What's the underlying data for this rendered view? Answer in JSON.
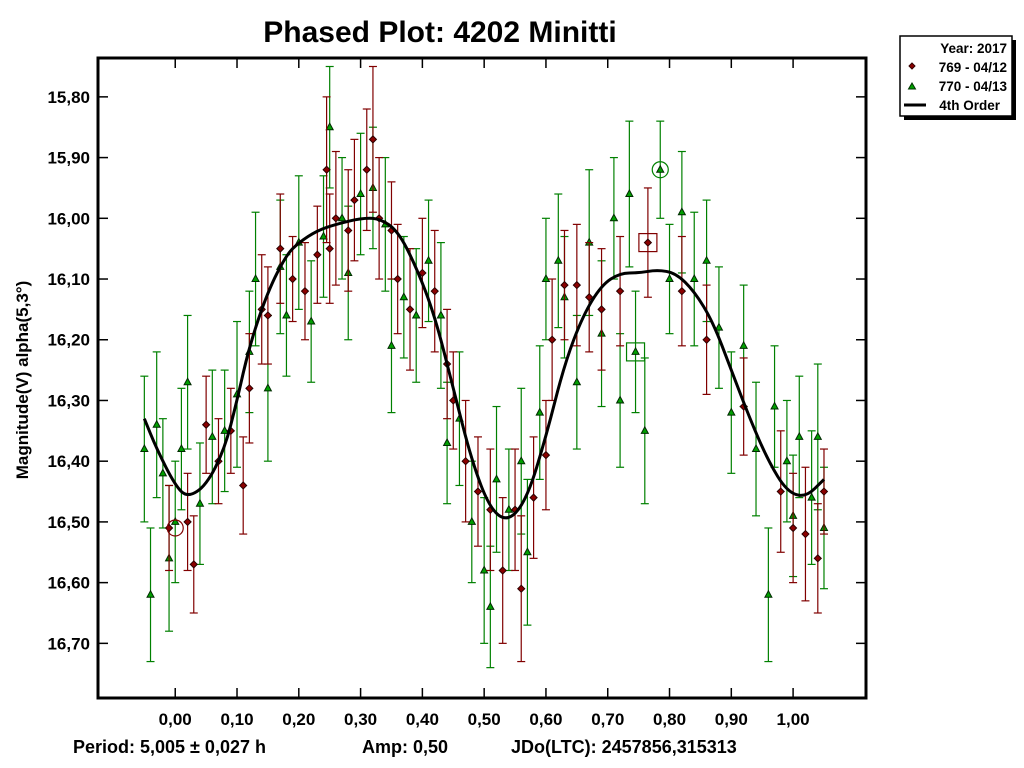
{
  "chart_data": {
    "type": "scatter",
    "title": "Phased Plot: 4202 Minitti",
    "xlabel": "",
    "ylabel": "Magnitude(V) alpha(5,3°)",
    "xlim": [
      -0.125,
      1.118
    ],
    "ylim": [
      15.736,
      16.79
    ],
    "y_inverted": true,
    "grid": false,
    "x_ticks": [
      "0,00",
      "0,10",
      "0,20",
      "0,30",
      "0,40",
      "0,50",
      "0,60",
      "0,70",
      "0,80",
      "0,90",
      "1,00"
    ],
    "x_tick_values": [
      0,
      0.1,
      0.2,
      0.3,
      0.4,
      0.5,
      0.6,
      0.7,
      0.8,
      0.9,
      1.0
    ],
    "y_ticks": [
      "15,80",
      "15,90",
      "16,00",
      "16,10",
      "16,20",
      "16,30",
      "16,40",
      "16,50",
      "16,60",
      "16,70"
    ],
    "y_tick_values": [
      15.8,
      15.9,
      16.0,
      16.1,
      16.2,
      16.3,
      16.4,
      16.5,
      16.6,
      16.7
    ],
    "legend": {
      "placement": "top-right-outside",
      "header": "Year: 2017",
      "entries": [
        "769 - 04/12",
        "770 - 04/13",
        "4th Order"
      ]
    },
    "colors": {
      "series1": "#800000",
      "series2": "#008000",
      "fit": "#000000"
    },
    "series": [
      {
        "name": "769 - 04/12",
        "marker": "diamond",
        "points_phase_mag_err": [
          [
            -0.01,
            16.51,
            0.07
          ],
          [
            0.02,
            16.5,
            0.08
          ],
          [
            0.03,
            16.57,
            0.08
          ],
          [
            0.05,
            16.34,
            0.08
          ],
          [
            0.07,
            16.4,
            0.07
          ],
          [
            0.09,
            16.35,
            0.07
          ],
          [
            0.11,
            16.44,
            0.08
          ],
          [
            0.12,
            16.28,
            0.09
          ],
          [
            0.14,
            16.15,
            0.09
          ],
          [
            0.15,
            16.16,
            0.08
          ],
          [
            0.17,
            16.05,
            0.09
          ],
          [
            0.19,
            16.1,
            0.07
          ],
          [
            0.21,
            16.12,
            0.08
          ],
          [
            0.23,
            16.06,
            0.08
          ],
          [
            0.245,
            15.92,
            0.12
          ],
          [
            0.25,
            16.05,
            0.09
          ],
          [
            0.26,
            16.0,
            0.11
          ],
          [
            0.28,
            16.02,
            0.1
          ],
          [
            0.29,
            15.97,
            0.1
          ],
          [
            0.31,
            15.92,
            0.1
          ],
          [
            0.32,
            15.87,
            0.12
          ],
          [
            0.33,
            16.0,
            0.1
          ],
          [
            0.35,
            16.02,
            0.08
          ],
          [
            0.36,
            16.1,
            0.09
          ],
          [
            0.38,
            16.15,
            0.1
          ],
          [
            0.4,
            16.09,
            0.09
          ],
          [
            0.42,
            16.12,
            0.1
          ],
          [
            0.44,
            16.24,
            0.09
          ],
          [
            0.45,
            16.3,
            0.08
          ],
          [
            0.47,
            16.4,
            0.1
          ],
          [
            0.49,
            16.45,
            0.09
          ],
          [
            0.51,
            16.48,
            0.1
          ],
          [
            0.53,
            16.58,
            0.12
          ],
          [
            0.55,
            16.48,
            0.1
          ],
          [
            0.56,
            16.61,
            0.12
          ],
          [
            0.58,
            16.46,
            0.1
          ],
          [
            0.6,
            16.39,
            0.09
          ],
          [
            0.61,
            16.2,
            0.1
          ],
          [
            0.63,
            16.11,
            0.09
          ],
          [
            0.65,
            16.11,
            0.1
          ],
          [
            0.67,
            16.13,
            0.09
          ],
          [
            0.69,
            16.15,
            0.1
          ],
          [
            0.72,
            16.12,
            0.09
          ],
          [
            0.765,
            16.04,
            0.09
          ],
          [
            0.82,
            16.12,
            0.09
          ],
          [
            0.86,
            16.2,
            0.09
          ],
          [
            0.92,
            16.31,
            0.08
          ],
          [
            0.98,
            16.45,
            0.1
          ],
          [
            1.0,
            16.51,
            0.09
          ],
          [
            1.02,
            16.52,
            0.11
          ],
          [
            1.04,
            16.56,
            0.09
          ],
          [
            1.05,
            16.45,
            0.07
          ]
        ]
      },
      {
        "name": "770 - 04/13",
        "marker": "triangle",
        "points_phase_mag_err": [
          [
            -0.05,
            16.38,
            0.12
          ],
          [
            -0.04,
            16.62,
            0.11
          ],
          [
            -0.03,
            16.34,
            0.12
          ],
          [
            -0.02,
            16.42,
            0.09
          ],
          [
            -0.01,
            16.56,
            0.12
          ],
          [
            0.0,
            16.5,
            0.1
          ],
          [
            0.01,
            16.38,
            0.1
          ],
          [
            0.02,
            16.27,
            0.11
          ],
          [
            0.04,
            16.47,
            0.1
          ],
          [
            0.06,
            16.36,
            0.11
          ],
          [
            0.08,
            16.35,
            0.1
          ],
          [
            0.1,
            16.29,
            0.12
          ],
          [
            0.12,
            16.22,
            0.1
          ],
          [
            0.13,
            16.1,
            0.11
          ],
          [
            0.15,
            16.28,
            0.12
          ],
          [
            0.17,
            16.08,
            0.11
          ],
          [
            0.18,
            16.16,
            0.1
          ],
          [
            0.2,
            16.04,
            0.11
          ],
          [
            0.22,
            16.17,
            0.1
          ],
          [
            0.24,
            16.03,
            0.1
          ],
          [
            0.25,
            15.85,
            0.1
          ],
          [
            0.27,
            16.0,
            0.1
          ],
          [
            0.28,
            16.09,
            0.11
          ],
          [
            0.3,
            15.96,
            0.1
          ],
          [
            0.32,
            15.95,
            0.1
          ],
          [
            0.34,
            16.01,
            0.11
          ],
          [
            0.35,
            16.21,
            0.11
          ],
          [
            0.37,
            16.13,
            0.1
          ],
          [
            0.39,
            16.16,
            0.11
          ],
          [
            0.41,
            16.07,
            0.1
          ],
          [
            0.43,
            16.16,
            0.12
          ],
          [
            0.44,
            16.37,
            0.1
          ],
          [
            0.46,
            16.33,
            0.11
          ],
          [
            0.48,
            16.5,
            0.1
          ],
          [
            0.5,
            16.58,
            0.12
          ],
          [
            0.51,
            16.64,
            0.1
          ],
          [
            0.52,
            16.43,
            0.12
          ],
          [
            0.54,
            16.48,
            0.1
          ],
          [
            0.56,
            16.4,
            0.12
          ],
          [
            0.57,
            16.55,
            0.12
          ],
          [
            0.59,
            16.32,
            0.11
          ],
          [
            0.6,
            16.1,
            0.1
          ],
          [
            0.62,
            16.07,
            0.11
          ],
          [
            0.63,
            16.13,
            0.1
          ],
          [
            0.65,
            16.27,
            0.11
          ],
          [
            0.67,
            16.04,
            0.12
          ],
          [
            0.69,
            16.19,
            0.12
          ],
          [
            0.71,
            16.0,
            0.1
          ],
          [
            0.72,
            16.3,
            0.11
          ],
          [
            0.735,
            15.96,
            0.12
          ],
          [
            0.745,
            16.22,
            0.1
          ],
          [
            0.76,
            16.35,
            0.12
          ],
          [
            0.785,
            15.92,
            0.08
          ],
          [
            0.8,
            16.1,
            0.09
          ],
          [
            0.82,
            15.99,
            0.1
          ],
          [
            0.84,
            16.1,
            0.11
          ],
          [
            0.86,
            16.07,
            0.1
          ],
          [
            0.88,
            16.18,
            0.1
          ],
          [
            0.9,
            16.32,
            0.1
          ],
          [
            0.92,
            16.21,
            0.1
          ],
          [
            0.94,
            16.38,
            0.11
          ],
          [
            0.96,
            16.62,
            0.11
          ],
          [
            0.97,
            16.31,
            0.1
          ],
          [
            0.99,
            16.4,
            0.1
          ],
          [
            1.0,
            16.49,
            0.1
          ],
          [
            1.01,
            16.36,
            0.1
          ],
          [
            1.03,
            16.46,
            0.11
          ],
          [
            1.04,
            16.36,
            0.12
          ],
          [
            1.05,
            16.51,
            0.1
          ]
        ]
      },
      {
        "name": "4th Order",
        "type": "line",
        "points_phase_mag": [
          [
            -0.05,
            16.33
          ],
          [
            -0.03,
            16.38
          ],
          [
            0.0,
            16.44
          ],
          [
            0.02,
            16.46
          ],
          [
            0.05,
            16.44
          ],
          [
            0.08,
            16.38
          ],
          [
            0.1,
            16.3
          ],
          [
            0.12,
            16.21
          ],
          [
            0.15,
            16.12
          ],
          [
            0.18,
            16.06
          ],
          [
            0.2,
            16.04
          ],
          [
            0.23,
            16.02
          ],
          [
            0.26,
            16.01
          ],
          [
            0.3,
            16.0
          ],
          [
            0.33,
            16.0
          ],
          [
            0.36,
            16.02
          ],
          [
            0.39,
            16.08
          ],
          [
            0.42,
            16.16
          ],
          [
            0.45,
            16.28
          ],
          [
            0.48,
            16.4
          ],
          [
            0.51,
            16.48
          ],
          [
            0.54,
            16.5
          ],
          [
            0.57,
            16.46
          ],
          [
            0.6,
            16.36
          ],
          [
            0.63,
            16.24
          ],
          [
            0.66,
            16.16
          ],
          [
            0.69,
            16.11
          ],
          [
            0.72,
            16.09
          ],
          [
            0.75,
            16.09
          ],
          [
            0.78,
            16.085
          ],
          [
            0.81,
            16.09
          ],
          [
            0.84,
            16.12
          ],
          [
            0.87,
            16.17
          ],
          [
            0.9,
            16.25
          ],
          [
            0.93,
            16.33
          ],
          [
            0.96,
            16.4
          ],
          [
            0.99,
            16.45
          ],
          [
            1.02,
            16.46
          ],
          [
            1.05,
            16.43
          ]
        ]
      }
    ],
    "annotations": [
      {
        "shape": "circle",
        "series": "769 - 04/12",
        "at": [
          0.0,
          16.51
        ]
      },
      {
        "shape": "circle",
        "series": "770 - 04/13",
        "at": [
          0.785,
          15.92
        ]
      },
      {
        "shape": "square",
        "series": "769 - 04/12",
        "at": [
          0.765,
          16.04
        ]
      },
      {
        "shape": "square",
        "series": "770 - 04/13",
        "at": [
          0.745,
          16.22
        ]
      }
    ]
  },
  "footer": {
    "period": "Period: 5,005 ± 0,027 h",
    "amp": "Amp: 0,50",
    "jdo": "JDo(LTC): 2457856,315313"
  }
}
